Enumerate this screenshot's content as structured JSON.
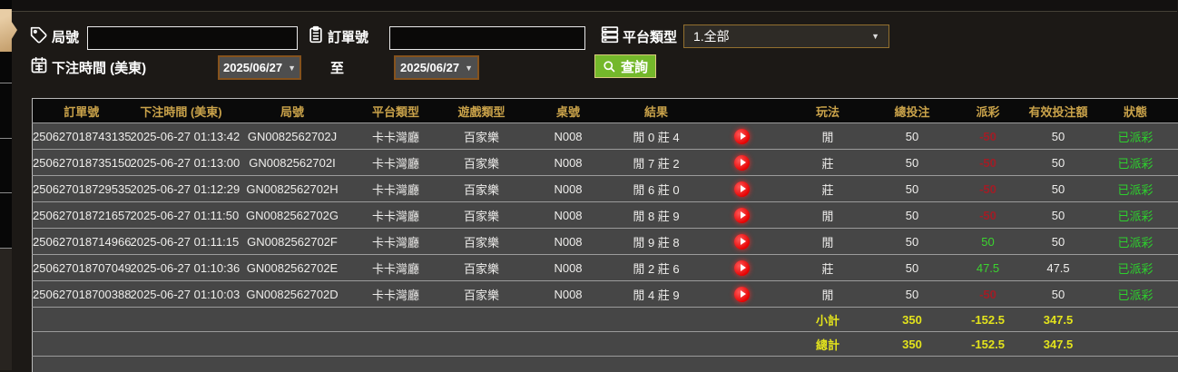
{
  "form": {
    "round_label": "局號",
    "round_value": "",
    "order_label": "訂單號",
    "order_value": "",
    "platform_label": "平台類型",
    "platform_value": "1.全部",
    "bet_time_label": "下注時間 (美東)",
    "date_from": "2025/06/27",
    "to_label": "至",
    "date_to": "2025/06/27",
    "query_label": "查詢"
  },
  "table": {
    "headers": [
      "訂單號",
      "下注時間 (美東)",
      "局號",
      "平台類型",
      "遊戲類型",
      "桌號",
      "結果",
      "",
      "玩法",
      "總投注",
      "派彩",
      "有效投注額",
      "狀態"
    ],
    "rows": [
      {
        "order": "250627018743135",
        "time": "2025-06-27 01:13:42",
        "round": "GN0082562702J",
        "platform": "卡卡灣廳",
        "game": "百家樂",
        "table_no": "N008",
        "result": "閒 0 莊 4",
        "play": "閒",
        "total_bet": "50",
        "payout": "-50",
        "valid_bet": "50",
        "status": "已派彩"
      },
      {
        "order": "250627018735150",
        "time": "2025-06-27 01:13:00",
        "round": "GN0082562702I",
        "platform": "卡卡灣廳",
        "game": "百家樂",
        "table_no": "N008",
        "result": "閒 7 莊 2",
        "play": "莊",
        "total_bet": "50",
        "payout": "-50",
        "valid_bet": "50",
        "status": "已派彩"
      },
      {
        "order": "250627018729535",
        "time": "2025-06-27 01:12:29",
        "round": "GN0082562702H",
        "platform": "卡卡灣廳",
        "game": "百家樂",
        "table_no": "N008",
        "result": "閒 6 莊 0",
        "play": "莊",
        "total_bet": "50",
        "payout": "-50",
        "valid_bet": "50",
        "status": "已派彩"
      },
      {
        "order": "250627018721657",
        "time": "2025-06-27 01:11:50",
        "round": "GN0082562702G",
        "platform": "卡卡灣廳",
        "game": "百家樂",
        "table_no": "N008",
        "result": "閒 8 莊 9",
        "play": "閒",
        "total_bet": "50",
        "payout": "-50",
        "valid_bet": "50",
        "status": "已派彩"
      },
      {
        "order": "250627018714966",
        "time": "2025-06-27 01:11:15",
        "round": "GN0082562702F",
        "platform": "卡卡灣廳",
        "game": "百家樂",
        "table_no": "N008",
        "result": "閒 9 莊 8",
        "play": "閒",
        "total_bet": "50",
        "payout": "50",
        "valid_bet": "50",
        "status": "已派彩"
      },
      {
        "order": "250627018707049",
        "time": "2025-06-27 01:10:36",
        "round": "GN0082562702E",
        "platform": "卡卡灣廳",
        "game": "百家樂",
        "table_no": "N008",
        "result": "閒 2 莊 6",
        "play": "莊",
        "total_bet": "50",
        "payout": "47.5",
        "valid_bet": "47.5",
        "status": "已派彩"
      },
      {
        "order": "250627018700388",
        "time": "2025-06-27 01:10:03",
        "round": "GN0082562702D",
        "platform": "卡卡灣廳",
        "game": "百家樂",
        "table_no": "N008",
        "result": "閒 4 莊 9",
        "play": "閒",
        "total_bet": "50",
        "payout": "-50",
        "valid_bet": "50",
        "status": "已派彩"
      }
    ],
    "subtotal": {
      "label": "小計",
      "total_bet": "350",
      "payout": "-152.5",
      "valid_bet": "347.5"
    },
    "total": {
      "label": "總計",
      "total_bet": "350",
      "payout": "-152.5",
      "valid_bet": "347.5"
    }
  },
  "icons": {
    "round": "tag-icon",
    "order": "clipboard-icon",
    "platform": "server-icon",
    "bet_time": "calendar-icon",
    "query": "search-icon",
    "replay": "play-icon",
    "dropdown": "chevron-down-icon"
  },
  "colors": {
    "page_bg": "#1c1916",
    "header_gold": "#c9a24a",
    "row_bg": "#464646",
    "status_green": "#2dd12d",
    "payout_negative_red": "#a11d26",
    "payout_positive_green": "#3bd42f",
    "subtotal_yellow": "#e3e31c",
    "query_button_green": "#74b82b",
    "date_border_brown": "#85521d",
    "sidebar_tab_tan": "#d8b584"
  }
}
